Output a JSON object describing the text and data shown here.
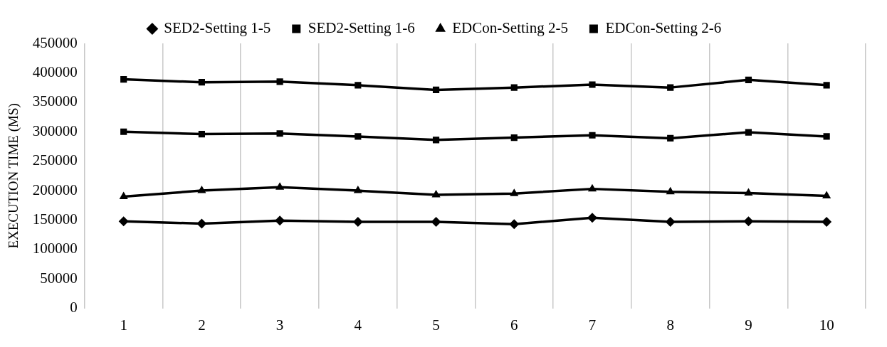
{
  "chart_data": {
    "type": "line",
    "ylabel": "EXECUTION TIME (MS)",
    "categories": [
      "1",
      "2",
      "3",
      "4",
      "5",
      "6",
      "7",
      "8",
      "9",
      "10"
    ],
    "series": [
      {
        "name": "SED2-Setting 1-5",
        "color": "#000000",
        "marker": "diamond",
        "values": [
          148000,
          144000,
          149000,
          147000,
          147000,
          143000,
          154000,
          147000,
          148000,
          147000
        ]
      },
      {
        "name": "SED2-Setting 1-6",
        "color": "#000000",
        "marker": "square",
        "values": [
          300000,
          296000,
          297000,
          292000,
          286000,
          290000,
          294000,
          289000,
          299000,
          292000
        ]
      },
      {
        "name": "EDCon-Setting 2-5",
        "color": "#000000",
        "marker": "triangle",
        "values": [
          190000,
          200000,
          206000,
          200000,
          193000,
          195000,
          203000,
          198000,
          196000,
          191000
        ]
      },
      {
        "name": "EDCon-Setting 2-6",
        "color": "#000000",
        "marker": "square",
        "values": [
          389000,
          384000,
          385000,
          379000,
          371000,
          375000,
          380000,
          375000,
          388000,
          379000
        ]
      }
    ],
    "ylim": [
      0,
      450000
    ],
    "yticks": [
      0,
      50000,
      100000,
      150000,
      200000,
      250000,
      300000,
      350000,
      400000,
      450000
    ],
    "grid": "x",
    "legend": "top",
    "line_style": "solid"
  }
}
